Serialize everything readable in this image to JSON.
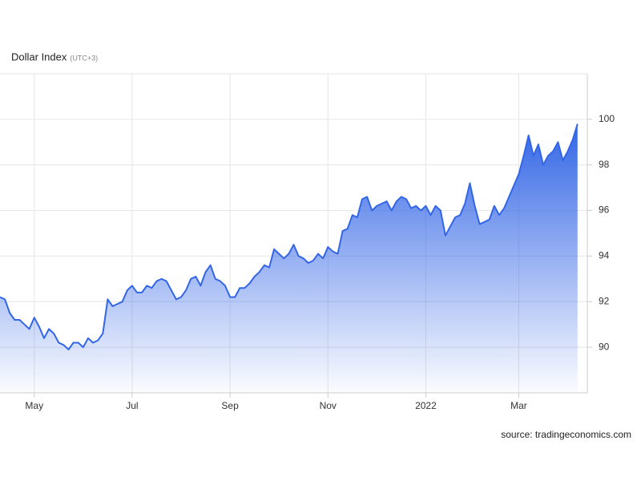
{
  "chart_data": {
    "type": "area",
    "title": "Dollar Index",
    "subtitle": "(UTC+3)",
    "source": "source: tradingeconomics.com",
    "values": [
      92.2,
      92.1,
      91.5,
      91.2,
      91.2,
      91.0,
      90.8,
      91.3,
      90.9,
      90.4,
      90.8,
      90.6,
      90.2,
      90.1,
      89.9,
      90.2,
      90.2,
      90.0,
      90.4,
      90.2,
      90.3,
      90.6,
      92.1,
      91.8,
      91.9,
      92.0,
      92.5,
      92.7,
      92.4,
      92.4,
      92.7,
      92.6,
      92.9,
      93.0,
      92.9,
      92.5,
      92.1,
      92.2,
      92.5,
      93.0,
      93.1,
      92.7,
      93.3,
      93.6,
      93.0,
      92.9,
      92.7,
      92.2,
      92.2,
      92.6,
      92.6,
      92.8,
      93.1,
      93.3,
      93.6,
      93.5,
      94.3,
      94.1,
      93.9,
      94.1,
      94.5,
      94.0,
      93.9,
      93.7,
      93.8,
      94.1,
      93.9,
      94.4,
      94.2,
      94.1,
      95.1,
      95.2,
      95.8,
      95.7,
      96.5,
      96.6,
      96.0,
      96.2,
      96.3,
      96.4,
      96.0,
      96.4,
      96.6,
      96.5,
      96.1,
      96.2,
      96.0,
      96.2,
      95.8,
      96.2,
      96.0,
      94.9,
      95.3,
      95.7,
      95.8,
      96.3,
      97.2,
      96.2,
      95.4,
      95.5,
      95.6,
      96.2,
      95.8,
      96.1,
      96.6,
      97.1,
      97.6,
      98.4,
      99.3,
      98.4,
      98.9,
      98.0,
      98.4,
      98.6,
      99.0,
      98.2,
      98.6,
      99.1,
      99.8
    ],
    "color": "#3366e6",
    "xlim": [
      0,
      120
    ],
    "xticks": [
      {
        "value": 7,
        "label": "May"
      },
      {
        "value": 27,
        "label": "Jul"
      },
      {
        "value": 47,
        "label": "Sep"
      },
      {
        "value": 67,
        "label": "Nov"
      },
      {
        "value": 87,
        "label": "2022"
      },
      {
        "value": 106,
        "label": "Mar"
      }
    ],
    "ylim": [
      88,
      102
    ],
    "yticks": [
      90,
      92,
      94,
      96,
      98,
      100
    ],
    "grid": true
  }
}
